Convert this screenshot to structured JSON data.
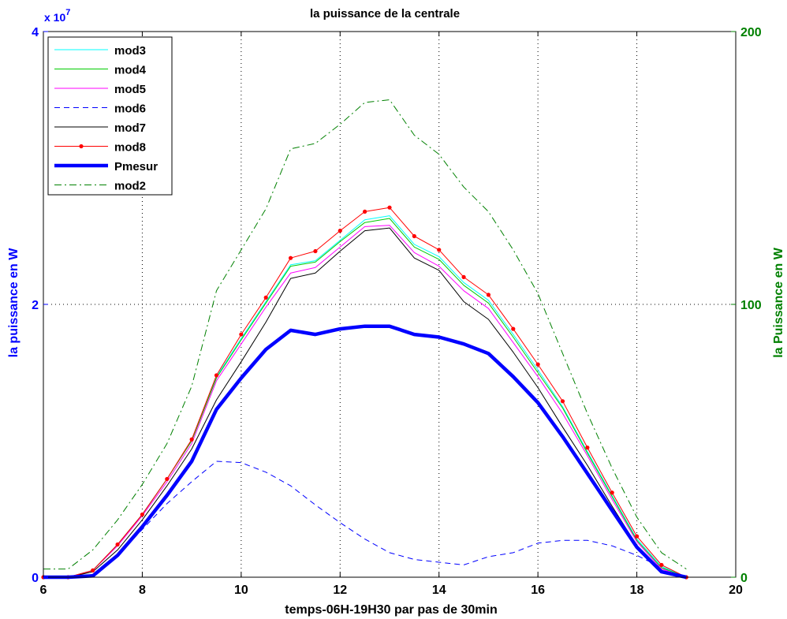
{
  "chart_data": {
    "type": "line",
    "title": "la puissance de la centrale",
    "xlabel": "temps-06H-19H30 par pas de 30min",
    "ylabel_left": "la puissance en W",
    "ylabel_right": "la Puissance en W",
    "ylabel_left_color": "#0000ff",
    "ylabel_right_color": "#008000",
    "y_exponent": "x 10",
    "y_exponent_power": "7",
    "xlim": [
      6,
      20
    ],
    "ylim_left": [
      0,
      4
    ],
    "ylim_right": [
      0,
      200
    ],
    "x_ticks": [
      "6",
      "8",
      "10",
      "12",
      "14",
      "16",
      "18",
      "20"
    ],
    "y_ticks_left": [
      "0",
      "2",
      "4"
    ],
    "y_ticks_right": [
      "0",
      "100",
      "200"
    ],
    "grid": true,
    "legend_position": "top-left",
    "x": [
      6,
      6.5,
      7,
      7.5,
      8,
      8.5,
      9,
      9.5,
      10,
      10.5,
      11,
      11.5,
      12,
      12.5,
      13,
      13.5,
      14,
      14.5,
      15,
      15.5,
      16,
      16.5,
      17,
      17.5,
      18,
      18.5,
      19
    ],
    "series": [
      {
        "name": "mod3",
        "color": "#00ffff",
        "style": "solid",
        "axis": "left",
        "values": [
          0,
          0,
          0.05,
          0.24,
          0.46,
          0.72,
          1.0,
          1.47,
          1.75,
          2.02,
          2.29,
          2.32,
          2.47,
          2.62,
          2.65,
          2.44,
          2.35,
          2.16,
          2.03,
          1.78,
          1.52,
          1.25,
          0.92,
          0.6,
          0.28,
          0.08,
          0
        ]
      },
      {
        "name": "mod4",
        "color": "#00cc00",
        "style": "solid",
        "axis": "left",
        "values": [
          0,
          0,
          0.05,
          0.24,
          0.46,
          0.72,
          1.0,
          1.46,
          1.74,
          2.01,
          2.28,
          2.31,
          2.46,
          2.6,
          2.63,
          2.42,
          2.33,
          2.14,
          2.01,
          1.76,
          1.5,
          1.24,
          0.91,
          0.59,
          0.27,
          0.07,
          0
        ]
      },
      {
        "name": "mod5",
        "color": "#ff00ff",
        "style": "solid",
        "axis": "left",
        "values": [
          0,
          0,
          0.05,
          0.23,
          0.45,
          0.7,
          0.98,
          1.44,
          1.71,
          1.98,
          2.23,
          2.27,
          2.42,
          2.57,
          2.58,
          2.38,
          2.28,
          2.1,
          1.97,
          1.72,
          1.47,
          1.2,
          0.89,
          0.57,
          0.26,
          0.06,
          0
        ]
      },
      {
        "name": "mod6",
        "color": "#0000ff",
        "style": "dashed",
        "axis": "left",
        "values": [
          0,
          0,
          0.02,
          0.16,
          0.35,
          0.54,
          0.7,
          0.85,
          0.84,
          0.77,
          0.67,
          0.53,
          0.4,
          0.28,
          0.18,
          0.13,
          0.11,
          0.09,
          0.15,
          0.18,
          0.25,
          0.27,
          0.27,
          0.23,
          0.16,
          0.07,
          0
        ]
      },
      {
        "name": "mod7",
        "color": "#000000",
        "style": "solid",
        "axis": "left",
        "values": [
          0,
          0,
          0.04,
          0.2,
          0.42,
          0.67,
          0.94,
          1.3,
          1.58,
          1.87,
          2.19,
          2.23,
          2.39,
          2.54,
          2.56,
          2.34,
          2.25,
          2.02,
          1.89,
          1.65,
          1.39,
          1.1,
          0.82,
          0.52,
          0.23,
          0.05,
          0
        ]
      },
      {
        "name": "mod8",
        "color": "#ff0000",
        "style": "solid-markers",
        "axis": "left",
        "values": [
          0,
          0,
          0.05,
          0.24,
          0.46,
          0.72,
          1.01,
          1.48,
          1.78,
          2.05,
          2.34,
          2.39,
          2.54,
          2.68,
          2.71,
          2.5,
          2.4,
          2.2,
          2.07,
          1.82,
          1.56,
          1.29,
          0.95,
          0.62,
          0.3,
          0.09,
          0
        ]
      },
      {
        "name": "Pmesur",
        "color": "#0000ff",
        "style": "thick",
        "axis": "left",
        "values": [
          0,
          0,
          0.01,
          0.16,
          0.37,
          0.6,
          0.85,
          1.23,
          1.46,
          1.67,
          1.81,
          1.78,
          1.82,
          1.84,
          1.84,
          1.78,
          1.76,
          1.71,
          1.64,
          1.47,
          1.28,
          1.03,
          0.76,
          0.49,
          0.22,
          0.04,
          0
        ]
      },
      {
        "name": "mod2",
        "color": "#008000",
        "style": "dashdot",
        "axis": "right",
        "values": [
          3,
          3,
          10,
          21,
          34,
          49,
          70,
          105,
          120,
          135,
          157,
          159,
          166,
          174,
          175,
          162,
          155,
          143,
          134,
          120,
          104,
          82,
          60,
          40,
          22,
          9,
          3
        ]
      }
    ]
  }
}
